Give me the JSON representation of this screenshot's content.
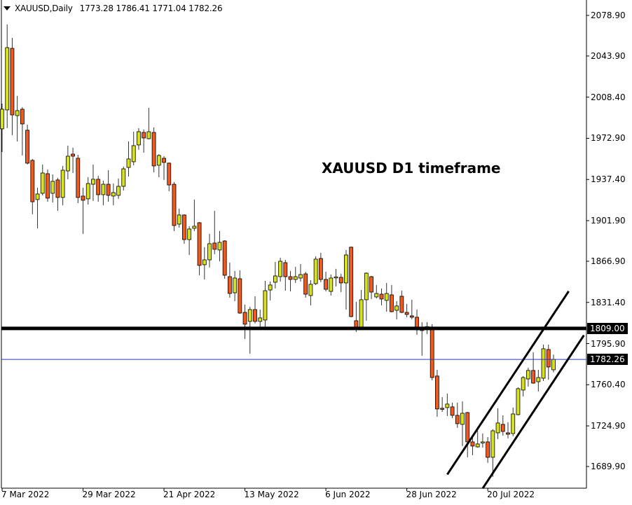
{
  "header": {
    "symbol_label": "XAUUSD,Daily",
    "ohlc_text": "1773.28 1786.41 1771.04 1782.26",
    "dropdown_icon": "triangle-down-icon"
  },
  "annotation": "XAUUSD D1 timeframe",
  "chart_data": {
    "type": "candlestick",
    "title": "",
    "colors": {
      "bull": "#d8e21c",
      "bear": "#f05a1a",
      "outline": "#000000",
      "wick": "#333333",
      "bid_line": "#2a38b8",
      "level_line": "#000000"
    },
    "ylim": [
      1665,
      2092
    ],
    "y_ticks": [
      "2078.90",
      "2043.90",
      "2008.40",
      "1972.90",
      "1937.40",
      "1901.90",
      "1866.90",
      "1831.40",
      "1795.90",
      "1760.40",
      "1724.90",
      "1689.90"
    ],
    "x_ticks": [
      {
        "date": "2022-03-07",
        "label": "7 Mar 2022"
      },
      {
        "date": "2022-03-29",
        "label": "29 Mar 2022"
      },
      {
        "date": "2022-04-21",
        "label": "21 Apr 2022"
      },
      {
        "date": "2022-05-13",
        "label": "13 May 2022"
      },
      {
        "date": "2022-06-06",
        "label": "6 Jun 2022"
      },
      {
        "date": "2022-06-28",
        "label": "28 Jun 2022"
      },
      {
        "date": "2022-07-20",
        "label": "20 Jul 2022"
      }
    ],
    "horizontal_levels": [
      {
        "price": 1809.0,
        "label": "1809.00",
        "style": "thick-black"
      },
      {
        "price": 1782.26,
        "label": "1782.26",
        "style": "thin-blue"
      }
    ],
    "trendlines": [
      {
        "from": {
          "date": "2022-07-08",
          "price": 1683
        },
        "to": {
          "date": "2022-08-11",
          "price": 1841
        }
      },
      {
        "from": {
          "date": "2022-07-19",
          "price": 1671
        },
        "to": {
          "date": "2022-08-16",
          "price": 1803
        }
      }
    ],
    "candles_columns": [
      "date",
      "open",
      "high",
      "low",
      "close"
    ],
    "candles": [
      [
        "2022-03-07",
        1981.1,
        2002.8,
        1961.1,
        1998.0
      ],
      [
        "2022-03-08",
        1997.4,
        2071.1,
        1981.7,
        2051.1
      ],
      [
        "2022-03-09",
        2050.5,
        2059.6,
        1975.6,
        1993.1
      ],
      [
        "2022-03-10",
        1992.5,
        2009.5,
        1970.2,
        1996.8
      ],
      [
        "2022-03-11",
        1998.0,
        1999.8,
        1958.1,
        1985.3
      ],
      [
        "2022-03-14",
        1979.9,
        1984.7,
        1950.3,
        1951.5
      ],
      [
        "2022-03-15",
        1953.9,
        1955.1,
        1907.4,
        1918.2
      ],
      [
        "2022-03-16",
        1920.1,
        1930.3,
        1895.3,
        1924.9
      ],
      [
        "2022-03-17",
        1925.5,
        1950.3,
        1923.7,
        1943.0
      ],
      [
        "2022-03-18",
        1942.4,
        1946.0,
        1918.2,
        1921.3
      ],
      [
        "2022-03-21",
        1925.5,
        1941.8,
        1917.6,
        1935.8
      ],
      [
        "2022-03-22",
        1937.0,
        1938.8,
        1910.4,
        1921.9
      ],
      [
        "2022-03-23",
        1921.9,
        1949.1,
        1915.2,
        1945.4
      ],
      [
        "2022-03-24",
        1944.8,
        1966.6,
        1937.6,
        1957.5
      ],
      [
        "2022-03-25",
        1959.3,
        1964.8,
        1943.0,
        1957.5
      ],
      [
        "2022-03-28",
        1955.7,
        1958.7,
        1917.0,
        1921.9
      ],
      [
        "2022-03-29",
        1923.1,
        1930.3,
        1890.5,
        1919.5
      ],
      [
        "2022-03-30",
        1920.7,
        1939.4,
        1915.8,
        1933.9
      ],
      [
        "2022-03-31",
        1933.3,
        1950.3,
        1918.9,
        1937.6
      ],
      [
        "2022-04-01",
        1937.6,
        1940.6,
        1918.2,
        1924.3
      ],
      [
        "2022-04-04",
        1924.3,
        1936.4,
        1915.2,
        1933.3
      ],
      [
        "2022-04-05",
        1933.3,
        1945.4,
        1918.2,
        1923.7
      ],
      [
        "2022-04-06",
        1923.1,
        1933.9,
        1915.2,
        1926.1
      ],
      [
        "2022-04-07",
        1923.7,
        1938.2,
        1920.7,
        1931.5
      ],
      [
        "2022-04-08",
        1931.5,
        1948.5,
        1927.9,
        1946.6
      ],
      [
        "2022-04-11",
        1947.8,
        1970.2,
        1940.0,
        1955.1
      ],
      [
        "2022-04-12",
        1952.7,
        1978.6,
        1949.7,
        1966.6
      ],
      [
        "2022-04-13",
        1967.2,
        1981.7,
        1963.0,
        1978.6
      ],
      [
        "2022-04-14",
        1978.0,
        1980.5,
        1960.5,
        1973.2
      ],
      [
        "2022-04-18",
        1972.6,
        1999.2,
        1972.0,
        1978.6
      ],
      [
        "2022-04-19",
        1978.0,
        1982.3,
        1943.6,
        1949.1
      ],
      [
        "2022-04-20",
        1949.7,
        1959.3,
        1939.4,
        1958.1
      ],
      [
        "2022-04-21",
        1955.7,
        1957.5,
        1937.0,
        1952.1
      ],
      [
        "2022-04-22",
        1951.5,
        1952.1,
        1927.3,
        1932.7
      ],
      [
        "2022-04-25",
        1933.3,
        1935.2,
        1892.9,
        1897.7
      ],
      [
        "2022-04-26",
        1898.9,
        1912.2,
        1895.9,
        1906.8
      ],
      [
        "2022-04-27",
        1906.8,
        1907.4,
        1882.0,
        1885.6
      ],
      [
        "2022-04-28",
        1885.6,
        1897.1,
        1872.3,
        1894.7
      ],
      [
        "2022-04-29",
        1895.3,
        1920.1,
        1892.9,
        1897.1
      ],
      [
        "2022-05-02",
        1900.1,
        1900.7,
        1854.8,
        1863.3
      ],
      [
        "2022-05-03",
        1863.9,
        1879.0,
        1851.2,
        1868.1
      ],
      [
        "2022-05-04",
        1868.1,
        1890.5,
        1861.5,
        1882.0
      ],
      [
        "2022-05-05",
        1882.6,
        1910.4,
        1872.9,
        1877.2
      ],
      [
        "2022-05-06",
        1876.6,
        1892.9,
        1866.9,
        1883.2
      ],
      [
        "2022-05-09",
        1884.4,
        1885.0,
        1851.8,
        1854.8
      ],
      [
        "2022-05-10",
        1853.6,
        1865.7,
        1835.5,
        1839.1
      ],
      [
        "2022-05-11",
        1839.7,
        1858.5,
        1832.5,
        1852.4
      ],
      [
        "2022-05-12",
        1851.8,
        1859.1,
        1821.6,
        1822.2
      ],
      [
        "2022-05-13",
        1822.8,
        1829.5,
        1799.9,
        1812.6
      ],
      [
        "2022-05-16",
        1815.0,
        1827.6,
        1787.2,
        1825.2
      ],
      [
        "2022-05-17",
        1825.2,
        1836.7,
        1813.2,
        1815.0
      ],
      [
        "2022-05-18",
        1815.0,
        1825.2,
        1807.7,
        1818.0
      ],
      [
        "2022-05-19",
        1816.2,
        1850.0,
        1810.1,
        1841.5
      ],
      [
        "2022-05-20",
        1842.1,
        1849.4,
        1833.1,
        1846.4
      ],
      [
        "2022-05-23",
        1848.8,
        1866.3,
        1843.4,
        1854.2
      ],
      [
        "2022-05-24",
        1853.6,
        1869.9,
        1849.4,
        1866.9
      ],
      [
        "2022-05-25",
        1865.7,
        1868.1,
        1841.5,
        1853.6
      ],
      [
        "2022-05-26",
        1853.6,
        1858.5,
        1840.9,
        1851.2
      ],
      [
        "2022-05-27",
        1851.2,
        1862.1,
        1848.2,
        1853.6
      ],
      [
        "2022-05-30",
        1852.4,
        1864.5,
        1849.4,
        1855.4
      ],
      [
        "2022-05-31",
        1856.0,
        1857.8,
        1835.5,
        1838.5
      ],
      [
        "2022-06-01",
        1837.3,
        1850.6,
        1828.9,
        1847.0
      ],
      [
        "2022-06-02",
        1847.6,
        1871.1,
        1846.4,
        1868.7
      ],
      [
        "2022-06-03",
        1869.3,
        1874.2,
        1848.8,
        1851.2
      ],
      [
        "2022-06-06",
        1851.2,
        1857.8,
        1840.9,
        1842.7
      ],
      [
        "2022-06-07",
        1840.9,
        1855.4,
        1837.3,
        1852.4
      ],
      [
        "2022-06-08",
        1853.0,
        1860.3,
        1845.2,
        1853.4
      ],
      [
        "2022-06-09",
        1853.0,
        1856.0,
        1840.3,
        1848.2
      ],
      [
        "2022-06-10",
        1848.2,
        1876.6,
        1825.2,
        1872.3
      ],
      [
        "2022-06-13",
        1879.0,
        1879.6,
        1818.6,
        1819.2
      ],
      [
        "2022-06-14",
        1815.6,
        1831.9,
        1805.9,
        1810.1
      ],
      [
        "2022-06-15",
        1808.3,
        1842.1,
        1807.7,
        1833.7
      ],
      [
        "2022-06-16",
        1833.7,
        1857.2,
        1815.6,
        1856.6
      ],
      [
        "2022-06-17",
        1853.6,
        1854.2,
        1834.3,
        1840.3
      ],
      [
        "2022-06-20",
        1836.1,
        1846.4,
        1834.9,
        1839.1
      ],
      [
        "2022-06-21",
        1838.5,
        1843.4,
        1828.9,
        1834.3
      ],
      [
        "2022-06-22",
        1833.1,
        1848.2,
        1823.4,
        1839.1
      ],
      [
        "2022-06-23",
        1837.9,
        1846.4,
        1822.8,
        1823.4
      ],
      [
        "2022-06-24",
        1824.6,
        1832.5,
        1816.8,
        1828.3
      ],
      [
        "2022-06-27",
        1836.7,
        1841.5,
        1822.2,
        1822.8
      ],
      [
        "2022-06-28",
        1822.8,
        1830.1,
        1818.6,
        1821.0
      ],
      [
        "2022-06-29",
        1819.8,
        1833.7,
        1816.8,
        1818.6
      ],
      [
        "2022-06-30",
        1818.6,
        1825.2,
        1803.5,
        1807.7
      ],
      [
        "2022-07-01",
        1807.1,
        1814.4,
        1785.4,
        1808.3
      ],
      [
        "2022-07-04",
        1810.1,
        1814.4,
        1804.1,
        1810.5
      ],
      [
        "2022-07-05",
        1808.3,
        1812.6,
        1764.2,
        1766.6
      ],
      [
        "2022-07-06",
        1767.9,
        1773.3,
        1732.8,
        1739.5
      ],
      [
        "2022-07-07",
        1740.1,
        1749.7,
        1737.0,
        1739.7
      ],
      [
        "2022-07-08",
        1740.7,
        1752.8,
        1733.4,
        1743.7
      ],
      [
        "2022-07-11",
        1741.3,
        1744.9,
        1731.6,
        1734.0
      ],
      [
        "2022-07-12",
        1734.0,
        1744.9,
        1723.2,
        1726.8
      ],
      [
        "2022-07-13",
        1726.2,
        1746.1,
        1707.5,
        1735.8
      ],
      [
        "2022-07-14",
        1736.4,
        1737.0,
        1697.8,
        1711.1
      ],
      [
        "2022-07-15",
        1711.1,
        1716.5,
        1699.6,
        1707.5
      ],
      [
        "2022-07-18",
        1706.8,
        1720.7,
        1706.2,
        1709.3
      ],
      [
        "2022-07-19",
        1710.5,
        1718.3,
        1706.2,
        1711.1
      ],
      [
        "2022-07-20",
        1711.1,
        1715.3,
        1693.0,
        1697.8
      ],
      [
        "2022-07-21",
        1697.8,
        1722.0,
        1680.9,
        1720.7
      ],
      [
        "2022-07-22",
        1718.9,
        1740.1,
        1713.5,
        1727.4
      ],
      [
        "2022-07-25",
        1726.2,
        1734.0,
        1716.5,
        1720.1
      ],
      [
        "2022-07-26",
        1718.9,
        1728.0,
        1714.1,
        1717.7
      ],
      [
        "2022-07-27",
        1718.3,
        1740.7,
        1715.9,
        1735.2
      ],
      [
        "2022-07-28",
        1734.6,
        1758.2,
        1734.0,
        1757.0
      ],
      [
        "2022-07-29",
        1755.8,
        1767.9,
        1750.3,
        1766.6
      ],
      [
        "2022-08-01",
        1765.4,
        1775.1,
        1758.8,
        1772.7
      ],
      [
        "2022-08-02",
        1772.7,
        1788.4,
        1761.2,
        1761.8
      ],
      [
        "2022-08-03",
        1763.0,
        1773.3,
        1754.6,
        1766.6
      ],
      [
        "2022-08-04",
        1766.0,
        1795.0,
        1763.6,
        1791.4
      ],
      [
        "2022-08-05",
        1790.8,
        1795.0,
        1764.8,
        1775.7
      ],
      [
        "2022-08-08",
        1773.28,
        1786.41,
        1771.04,
        1782.26
      ]
    ]
  }
}
